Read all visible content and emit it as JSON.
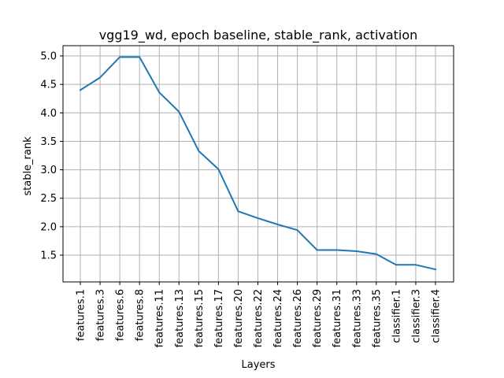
{
  "chart_data": {
    "type": "line",
    "title": "vgg19_wd, epoch baseline, stable_rank, activation",
    "xlabel": "Layers",
    "ylabel": "stable_rank",
    "categories": [
      "features.1",
      "features.3",
      "features.6",
      "features.8",
      "features.11",
      "features.13",
      "features.15",
      "features.17",
      "features.20",
      "features.22",
      "features.24",
      "features.26",
      "features.29",
      "features.31",
      "features.33",
      "features.35",
      "classifier.1",
      "classifier.3",
      "classifier.4"
    ],
    "series": [
      {
        "values": [
          4.4,
          4.62,
          4.98,
          4.98,
          4.36,
          4.02,
          3.33,
          3.01,
          2.27,
          2.15,
          2.04,
          1.94,
          1.59,
          1.59,
          1.57,
          1.52,
          1.33,
          1.33,
          1.25
        ],
        "color": "#1f77b4"
      }
    ],
    "ylim": [
      1.03,
      5.18
    ],
    "yticks": [
      1.5,
      2.0,
      2.5,
      3.0,
      3.5,
      4.0,
      4.5,
      5.0
    ],
    "ytick_labels": [
      "1.5",
      "2.0",
      "2.5",
      "3.0",
      "3.5",
      "4.0",
      "4.5",
      "5.0"
    ],
    "grid": true,
    "legend": "none"
  }
}
